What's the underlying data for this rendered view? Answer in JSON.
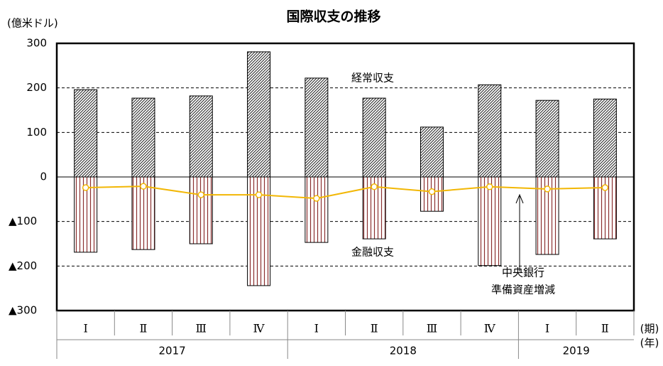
{
  "chart_data": {
    "type": "bar-line",
    "title": "国際収支の推移",
    "y_label": "(億米ドル)",
    "categories": [
      "Ⅰ",
      "Ⅱ",
      "Ⅲ",
      "Ⅳ",
      "Ⅰ",
      "Ⅱ",
      "Ⅲ",
      "Ⅳ",
      "Ⅰ",
      "Ⅱ"
    ],
    "category_axis_label": "(期)",
    "years": [
      "2017",
      "2018",
      "2019"
    ],
    "year_axis_label": "(年)",
    "series": [
      {
        "name": "経常収支",
        "type": "bar",
        "pattern": "diagonal",
        "color": "#222222",
        "values": [
          196,
          177,
          182,
          281,
          222,
          177,
          112,
          207,
          172,
          175
        ]
      },
      {
        "name": "金融収支",
        "type": "bar",
        "pattern": "vertical",
        "color": "#8b3030",
        "values": [
          -169,
          -163,
          -150,
          -244,
          -147,
          -139,
          -77,
          -199,
          -174,
          -139
        ]
      },
      {
        "name": [
          "中央銀行",
          "準備資産増減"
        ],
        "type": "line",
        "color": "#f2b705",
        "values": [
          -24,
          -21,
          -40,
          -40,
          -48,
          -22,
          -33,
          -22,
          -27,
          -24
        ]
      }
    ],
    "ylim": [
      -300,
      300
    ],
    "yticks": [
      {
        "value": -300,
        "label": "▲300"
      },
      {
        "value": -200,
        "label": "▲200"
      },
      {
        "value": -100,
        "label": "▲100"
      },
      0,
      100,
      200,
      300
    ],
    "grid": true
  }
}
